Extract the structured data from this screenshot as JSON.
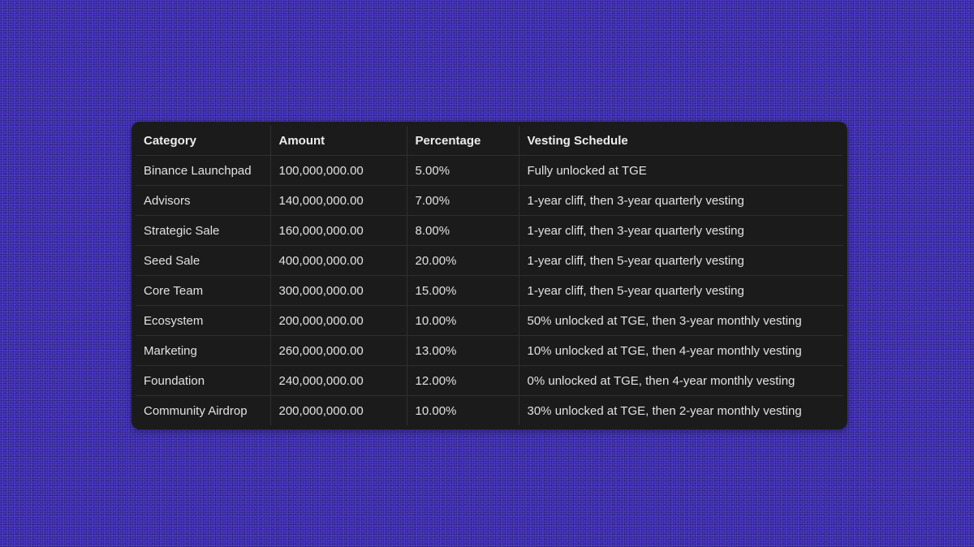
{
  "table": {
    "headers": [
      "Category",
      "Amount",
      "Percentage",
      "Vesting Schedule"
    ],
    "rows": [
      [
        "Binance Launchpad",
        "100,000,000.00",
        "5.00%",
        "Fully unlocked at TGE"
      ],
      [
        "Advisors",
        "140,000,000.00",
        "7.00%",
        "1-year cliff, then 3-year quarterly vesting"
      ],
      [
        "Strategic Sale",
        "160,000,000.00",
        "8.00%",
        "1-year cliff, then 3-year quarterly vesting"
      ],
      [
        "Seed Sale",
        "400,000,000.00",
        "20.00%",
        "1-year cliff, then 5-year quarterly vesting"
      ],
      [
        "Core Team",
        "300,000,000.00",
        "15.00%",
        "1-year cliff, then 5-year quarterly vesting"
      ],
      [
        "Ecosystem",
        "200,000,000.00",
        "10.00%",
        "50% unlocked at TGE, then 3-year monthly vesting"
      ],
      [
        "Marketing",
        "260,000,000.00",
        "13.00%",
        "10% unlocked at TGE, then 4-year monthly vesting"
      ],
      [
        "Foundation",
        "240,000,000.00",
        "12.00%",
        "0% unlocked at TGE, then 4-year monthly vesting"
      ],
      [
        "Community Airdrop",
        "200,000,000.00",
        "10.00%",
        "30% unlocked at TGE, then 2-year monthly vesting"
      ]
    ]
  },
  "colors": {
    "background": "#4a39c4",
    "card": "#1b1b1b",
    "text": "#e8e8e8",
    "grid": "#2f2f2f"
  }
}
